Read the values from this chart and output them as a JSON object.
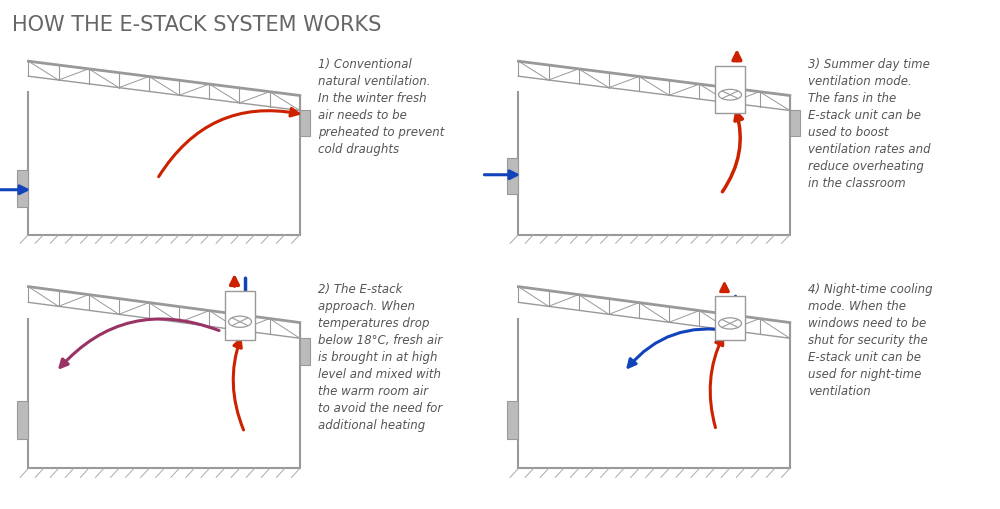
{
  "title": "HOW THE E-STACK SYSTEM WORKS",
  "title_fontsize": 15,
  "title_color": "#666666",
  "background_color": "#ffffff",
  "panel_descriptions": [
    "1) Conventional\nnatural ventilation.\nIn the winter fresh\nair needs to be\npreheated to prevent\ncold draughts",
    "3) Summer day time\nventilation mode.\nThe fans in the\nE-stack unit can be\nused to boost\nventilation rates and\nreduce overheating\nin the classroom",
    "2) The E-stack\napproach. When\ntemperatures drop\nbelow 18°C, fresh air\nis brought in at high\nlevel and mixed with\nthe warm room air\nto avoid the need for\nadditional heating",
    "4) Night-time cooling\nmode. When the\nwindows need to be\nshut for security the\nE-stack unit can be\nused for night-time\nventilation"
  ],
  "wall_color": "#999999",
  "arrow_blue": "#1144bb",
  "arrow_red": "#cc2200",
  "arrow_purple": "#993366",
  "text_color": "#555555",
  "text_fontsize": 8.5
}
